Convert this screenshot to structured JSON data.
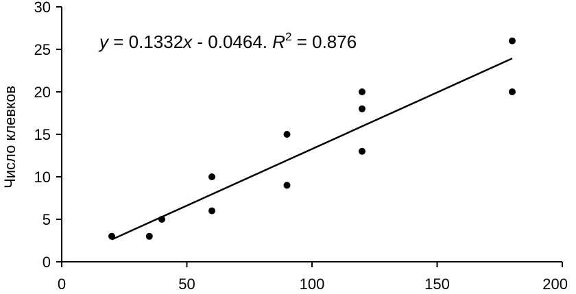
{
  "chart_data": {
    "type": "scatter",
    "title": "",
    "xlabel": "",
    "ylabel": "Число клевков",
    "xlim": [
      0,
      200
    ],
    "ylim": [
      0,
      30
    ],
    "x_ticks": [
      "0",
      "50",
      "100",
      "150",
      "200"
    ],
    "y_ticks": [
      "0",
      "5",
      "10",
      "15",
      "20",
      "25",
      "30"
    ],
    "grid": false,
    "legend": "none",
    "series": [
      {
        "points": [
          {
            "x": 20,
            "y": 3
          },
          {
            "x": 35,
            "y": 3
          },
          {
            "x": 40,
            "y": 5
          },
          {
            "x": 60,
            "y": 10
          },
          {
            "x": 60,
            "y": 6
          },
          {
            "x": 90,
            "y": 15
          },
          {
            "x": 90,
            "y": 9
          },
          {
            "x": 120,
            "y": 20
          },
          {
            "x": 120,
            "y": 18
          },
          {
            "x": 120,
            "y": 13
          },
          {
            "x": 180,
            "y": 26
          },
          {
            "x": 180,
            "y": 20
          }
        ]
      }
    ],
    "trendline": {
      "slope": 0.1332,
      "intercept": -0.0464,
      "x_range": [
        20,
        180
      ]
    },
    "annotation": {
      "y_var": "y",
      "eq_part1": " = 0.1332",
      "x_var": "x",
      "eq_part2": " - 0.0464. ",
      "r_var": "R",
      "r_sup": "2",
      "eq_part3": " = 0.876"
    },
    "colors": {
      "marker": "#000000",
      "line": "#000000",
      "axis": "#000000"
    }
  }
}
